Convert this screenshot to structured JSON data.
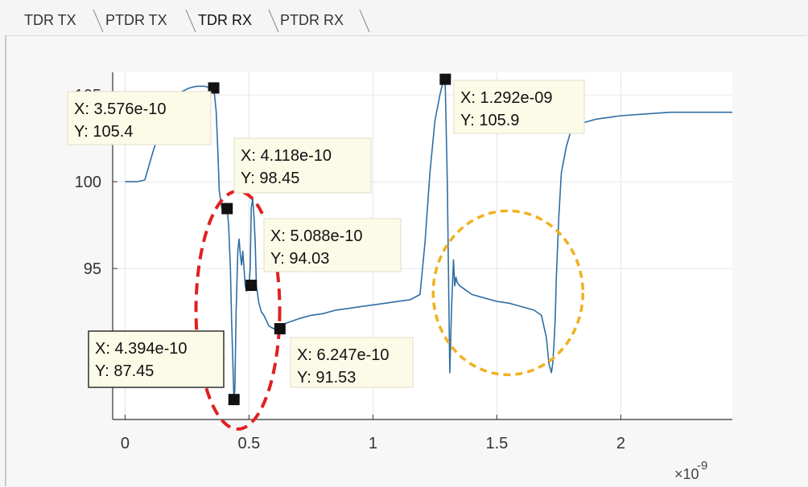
{
  "tabs": [
    {
      "label": "TDR TX",
      "active": false
    },
    {
      "label": "PTDR TX",
      "active": false
    },
    {
      "label": "TDR RX",
      "active": true
    },
    {
      "label": "PTDR RX",
      "active": false
    }
  ],
  "chart_data": {
    "type": "line",
    "x_ticks": [
      0,
      0.5,
      1,
      1.5,
      2
    ],
    "x_tick_labels": [
      "0",
      "0.5",
      "1",
      "1.5",
      "2"
    ],
    "x_exponent_label": "×10",
    "x_exponent_power": "-9",
    "y_ticks": [
      95,
      100,
      105
    ],
    "y_tick_labels": [
      "95",
      "100",
      "105"
    ],
    "xlim": [
      -0.05,
      2.45
    ],
    "ylim": [
      86.3,
      106.3
    ],
    "grid": true,
    "series": [
      {
        "color": "#2f6ea5",
        "x": [
          0.0,
          0.02,
          0.05,
          0.08,
          0.11,
          0.14,
          0.17,
          0.2,
          0.23,
          0.26,
          0.29,
          0.32,
          0.345,
          0.358,
          0.368,
          0.375,
          0.38,
          0.39,
          0.398,
          0.405,
          0.412,
          0.418,
          0.425,
          0.43,
          0.435,
          0.439,
          0.443,
          0.448,
          0.455,
          0.46,
          0.465,
          0.47,
          0.475,
          0.48,
          0.485,
          0.49,
          0.5,
          0.505,
          0.509,
          0.515,
          0.52,
          0.525,
          0.53,
          0.54,
          0.55,
          0.56,
          0.57,
          0.58,
          0.59,
          0.6,
          0.61,
          0.625,
          0.64,
          0.66,
          0.7,
          0.75,
          0.8,
          0.85,
          0.9,
          0.95,
          1.0,
          1.05,
          1.1,
          1.15,
          1.19,
          1.21,
          1.23,
          1.25,
          1.27,
          1.285,
          1.292,
          1.3,
          1.31,
          1.318,
          1.325,
          1.33,
          1.335,
          1.34,
          1.35,
          1.36,
          1.38,
          1.4,
          1.45,
          1.5,
          1.55,
          1.6,
          1.65,
          1.68,
          1.7,
          1.71,
          1.72,
          1.725,
          1.73,
          1.735,
          1.74,
          1.75,
          1.76,
          1.78,
          1.8,
          1.82,
          1.85,
          1.9,
          1.95,
          2.0,
          2.1,
          2.2,
          2.3,
          2.4,
          2.45
        ],
        "y": [
          100.0,
          100.0,
          100.0,
          100.1,
          101.6,
          103.0,
          103.9,
          104.7,
          105.2,
          105.4,
          105.5,
          105.5,
          105.4,
          105.4,
          104.0,
          101.5,
          99.5,
          98.5,
          98.3,
          98.45,
          98.4,
          97.5,
          95.0,
          92.0,
          89.5,
          87.45,
          88.0,
          92.5,
          96.0,
          96.7,
          95.8,
          95.2,
          96.0,
          95.0,
          94.0,
          93.7,
          94.03,
          95.0,
          98.5,
          99.0,
          98.0,
          96.5,
          94.0,
          93.0,
          92.5,
          92.3,
          92.0,
          91.7,
          91.6,
          91.53,
          91.6,
          91.7,
          91.8,
          91.9,
          92.1,
          92.3,
          92.4,
          92.6,
          92.7,
          92.8,
          92.9,
          93.0,
          93.1,
          93.2,
          93.5,
          96.5,
          100.5,
          103.5,
          105.0,
          105.9,
          105.5,
          100.0,
          89.0,
          93.0,
          95.5,
          94.0,
          94.5,
          94.2,
          94.0,
          93.9,
          93.7,
          93.5,
          93.3,
          93.1,
          93.0,
          92.8,
          92.6,
          92.3,
          91.0,
          89.5,
          89.0,
          89.5,
          90.5,
          92.0,
          94.5,
          98.0,
          100.5,
          102.0,
          103.0,
          103.2,
          103.4,
          103.6,
          103.7,
          103.8,
          103.9,
          104.0,
          104.0,
          104.0,
          104.0
        ]
      }
    ],
    "datatips": [
      {
        "x": 0.3576,
        "y": 105.4,
        "label_x": "X: 3.576e-10",
        "label_y": "Y: 105.4"
      },
      {
        "x": 0.4118,
        "y": 98.45,
        "label_x": "X: 4.118e-10",
        "label_y": "Y: 98.45"
      },
      {
        "x": 0.5088,
        "y": 94.03,
        "label_x": "X: 5.088e-10",
        "label_y": "Y: 94.03"
      },
      {
        "x": 0.4394,
        "y": 87.45,
        "label_x": "X: 4.394e-10",
        "label_y": "Y: 87.45"
      },
      {
        "x": 0.6247,
        "y": 91.53,
        "label_x": "X: 6.247e-10",
        "label_y": "Y: 91.53"
      },
      {
        "x": 1.292,
        "y": 105.9,
        "label_x": "X: 1.292e-09",
        "label_y": "Y: 105.9"
      }
    ],
    "highlights": [
      {
        "color": "#e02020",
        "style": "dashed-ellipse"
      },
      {
        "color": "#f0b020",
        "style": "dashed-circle"
      }
    ]
  }
}
